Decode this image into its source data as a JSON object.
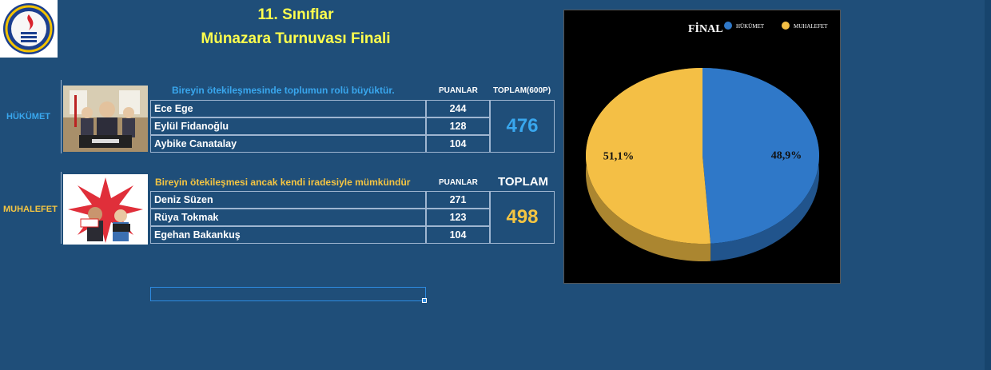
{
  "header": {
    "title_line1": "11. Sınıflar",
    "title_line2": "Münazara Turnuvası Finali",
    "logo_text": "TED ANKARA KOLEJİ"
  },
  "colors": {
    "background": "#1f4e79",
    "title": "#ffff4d",
    "hukumet": "#2f78c8",
    "muhalefet": "#f4bf45",
    "hukumet_text": "#39a7ee",
    "muhalefet_text": "#f4c542"
  },
  "hukumet": {
    "label": "HÜKÜMET",
    "topic": "Bireyin ötekileşmesinde toplumun rolü büyüktür.",
    "puanlar_header": "PUANLAR",
    "total_header": "TOPLAM(600P)",
    "members": [
      {
        "name": "Ece Ege",
        "score": "244"
      },
      {
        "name": "Eylül Fidanoğlu",
        "score": "128"
      },
      {
        "name": "Aybike Canatalay",
        "score": "104"
      }
    ],
    "total": "476",
    "image_icon": "cartoon-scene-image"
  },
  "muhalefet": {
    "label": "MUHALEFET",
    "topic": "Bireyin ötekileşmesi ancak kendi iradesiyle mümkündür",
    "puanlar_header": "PUANLAR",
    "total_header": "TOPLAM",
    "members": [
      {
        "name": "Deniz Süzen",
        "score": "271"
      },
      {
        "name": "Rüya Tokmak",
        "score": "123"
      },
      {
        "name": "Egehan Bakankuş",
        "score": "104"
      }
    ],
    "total": "498",
    "image_icon": "protest-cartoon-image"
  },
  "chart_data": {
    "type": "pie",
    "title": "FİNAL",
    "legend_position": "top",
    "series": [
      {
        "name": "HÜKÜMET",
        "value": 48.9,
        "label": "48,9%",
        "color": "#2f78c8"
      },
      {
        "name": "MUHALEFET",
        "value": 51.1,
        "label": "51,1%",
        "color": "#f4bf45"
      }
    ]
  }
}
